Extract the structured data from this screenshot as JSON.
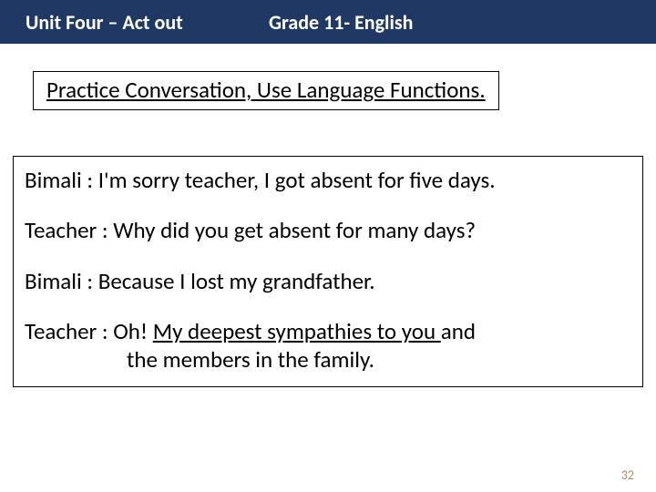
{
  "header": {
    "left": "Unit  Four –  Act  out",
    "right": "Grade 11- English",
    "bg_color": "#1f3864",
    "text_color": "#ffffff"
  },
  "subtitle": {
    "text": "Practice  Conversation, Use Language Functions."
  },
  "dialogue": {
    "line1": "Bimali : I'm sorry teacher, I got absent for five days.",
    "line2": "Teacher : Why did you get absent for many days?",
    "line3": "Bimali : Because I lost my grandfather.",
    "line4_pre": "Teacher : Oh! ",
    "line4_underlined": "My deepest sympathies to you ",
    "line4_post": "and",
    "line4_cont": "the members in the family."
  },
  "page_number": "32"
}
